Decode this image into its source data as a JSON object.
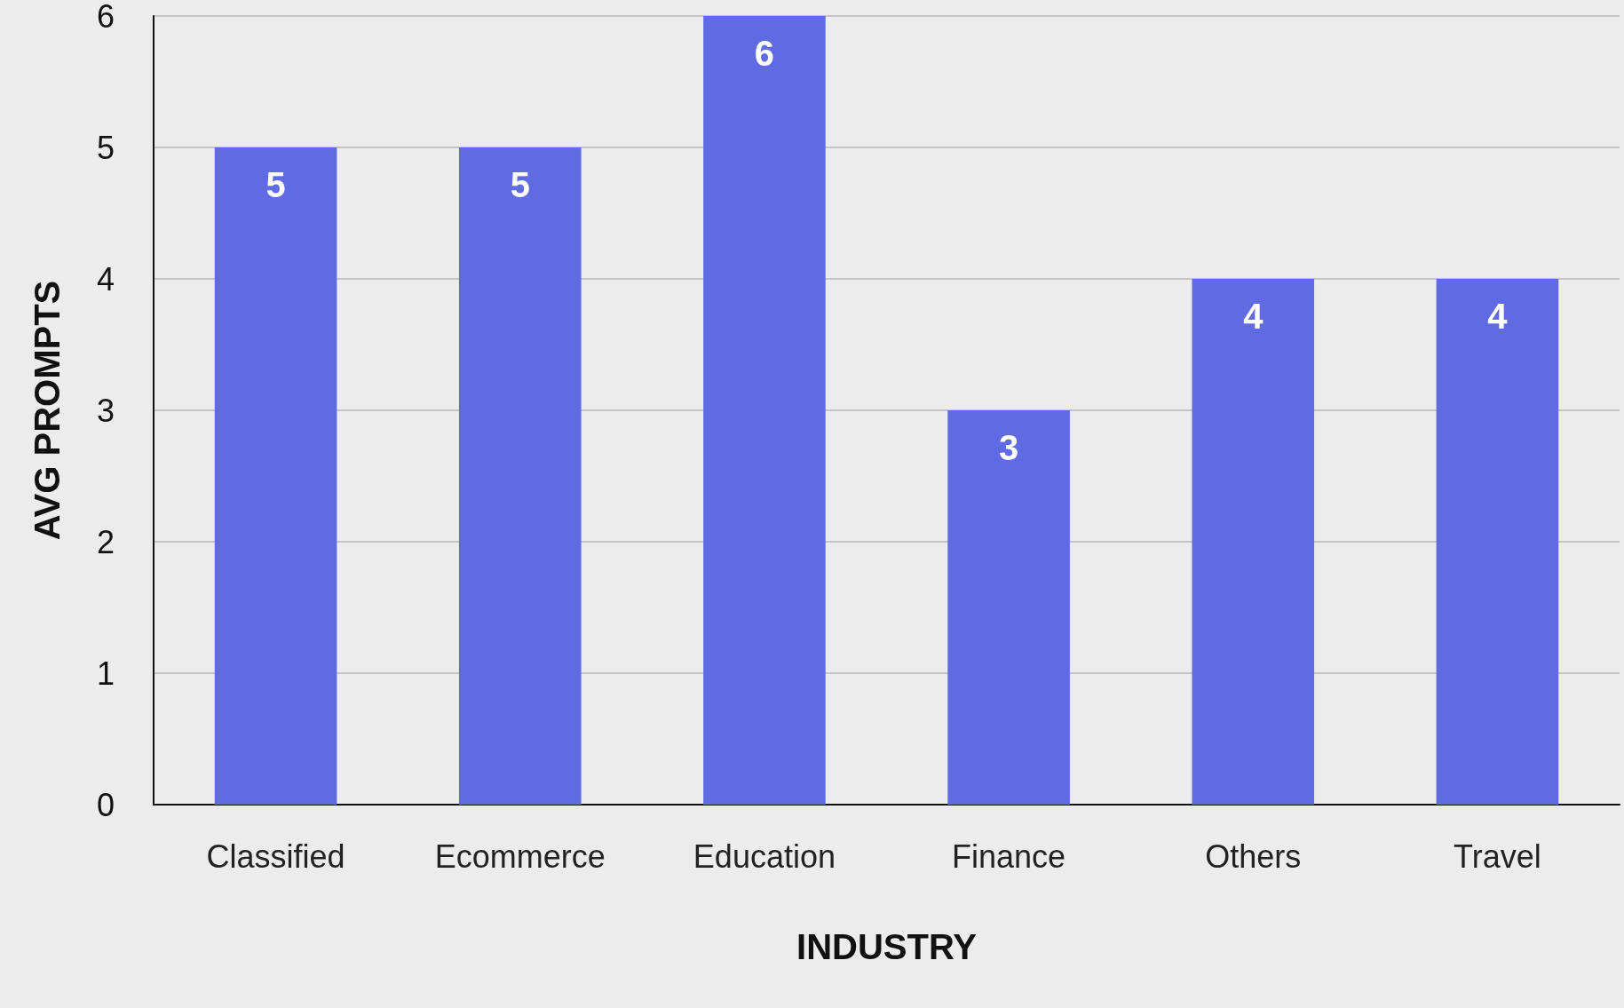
{
  "chart_data": {
    "type": "bar",
    "xlabel": "INDUSTRY",
    "ylabel": "AVG PROMPTS",
    "categories": [
      "Classified",
      "Ecommerce",
      "Education",
      "Finance",
      "Others",
      "Travel"
    ],
    "values": [
      5,
      5,
      6,
      3,
      4,
      4
    ],
    "color": "#5f6ae3",
    "ylim": [
      0,
      6
    ],
    "yticks": [
      0,
      1,
      2,
      3,
      4,
      5,
      6
    ],
    "grid": "y",
    "data_labels": true
  }
}
